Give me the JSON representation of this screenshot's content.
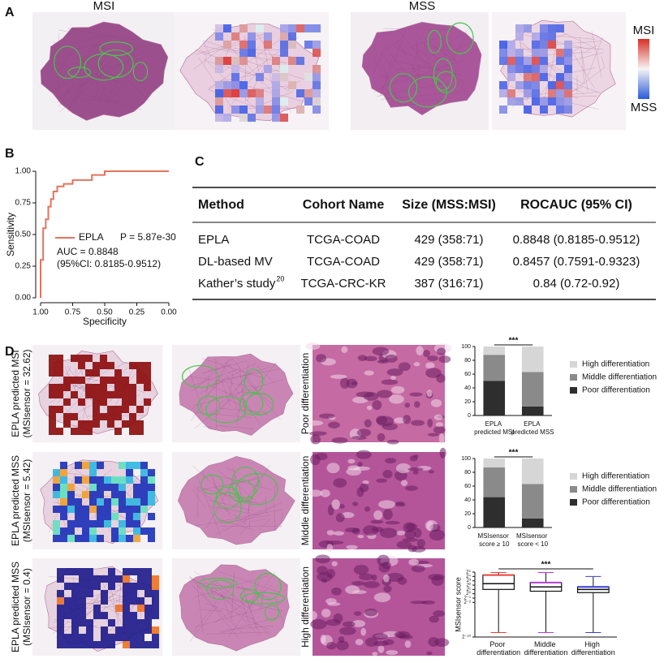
{
  "panel_a": {
    "label": "A",
    "titles": [
      "MSI",
      "MSS"
    ],
    "colorbar": {
      "top": "MSI",
      "bottom": "MSS"
    }
  },
  "panel_b": {
    "label": "B"
  },
  "panel_c": {
    "label": "C"
  },
  "panel_d": {
    "label": "D",
    "rows": [
      {
        "title": "EPLA predicted MSI",
        "subtitle": "(MSIsensor = 32.62)",
        "differentiation": "Poor differentiation"
      },
      {
        "title": "EPLA predicted MSS",
        "subtitle": "(MSIsensor = 5.42)",
        "differentiation": "Middle differentiation"
      },
      {
        "title": "EPLA predicted MSS",
        "subtitle": "(MSIsensor = 0.4)",
        "differentiation": "High differentiation"
      }
    ]
  },
  "table": {
    "columns": [
      "Method",
      "Cohort Name",
      "Size (MSS:MSI)",
      "ROCAUC (95% CI)"
    ],
    "rows": [
      [
        "EPLA",
        "TCGA-COAD",
        "429 (358:71)",
        "0.8848 (0.8185-0.9512)"
      ],
      [
        "DL-based MV",
        "TCGA-COAD",
        "429 (358:71)",
        "0.8457 (0.7591-0.9323)"
      ],
      [
        "Kather’s study",
        "TCGA-CRC-KR",
        "387 (316:71)",
        "0.84 (0.72-0.92)"
      ]
    ],
    "citation": "20"
  },
  "chart_data": [
    {
      "type": "line",
      "xlabel": "Specificity",
      "ylabel": "Sensitivity",
      "xlim": [
        1,
        0
      ],
      "ylim": [
        0,
        1
      ],
      "xticks": [
        {
          "value": 1,
          "label": "1.00"
        },
        {
          "value": 0.75,
          "label": "0.75"
        },
        {
          "value": 0.5,
          "label": "0.50"
        },
        {
          "value": 0.25,
          "label": "0.25"
        },
        {
          "value": 0,
          "label": "0.00"
        }
      ],
      "yticks": [
        {
          "value": 0,
          "label": "0.00"
        },
        {
          "value": 0.25,
          "label": "0.25"
        },
        {
          "value": 0.5,
          "label": "0.50"
        },
        {
          "value": 0.75,
          "label": "0.75"
        },
        {
          "value": 1,
          "label": "1.00"
        }
      ],
      "series": [
        {
          "name": "EPLA",
          "color": "#e5735f",
          "x": [
            1,
            1,
            0.98,
            0.98,
            0.96,
            0.96,
            0.94,
            0.94,
            0.92,
            0.92,
            0.9,
            0.9,
            0.87,
            0.87,
            0.82,
            0.82,
            0.75,
            0.75,
            0.6,
            0.6,
            0.5,
            0.5,
            0
          ],
          "values": [
            0,
            0.3,
            0.3,
            0.55,
            0.55,
            0.62,
            0.62,
            0.72,
            0.72,
            0.78,
            0.78,
            0.84,
            0.84,
            0.88,
            0.88,
            0.9,
            0.9,
            0.93,
            0.93,
            0.97,
            0.97,
            1,
            1
          ]
        }
      ],
      "annotations": [
        "P = 5.87e-30",
        "AUC = 0.8848",
        "(95%CI: 0.8185-0.9512)"
      ]
    },
    {
      "type": "bar",
      "stacked": true,
      "categories": [
        "EPLA predicted MSI",
        "EPLA predicted MSS"
      ],
      "ylim": [
        0,
        100
      ],
      "yticks": [
        0,
        20,
        40,
        60,
        80,
        100
      ],
      "significance": "***",
      "series": [
        {
          "name": "Poor differentiation",
          "color": "#2e2e2e",
          "values": [
            50,
            13
          ]
        },
        {
          "name": "Middle differentiation",
          "color": "#8a8a8a",
          "values": [
            38,
            50
          ]
        },
        {
          "name": "High differentiation",
          "color": "#d6d6d6",
          "values": [
            12,
            37
          ]
        }
      ]
    },
    {
      "type": "bar",
      "stacked": true,
      "categories": [
        "MSIsensor score ≥ 10",
        "MSIsensor score < 10"
      ],
      "ylim": [
        0,
        100
      ],
      "yticks": [
        0,
        20,
        40,
        60,
        80,
        100
      ],
      "significance": "***",
      "series": [
        {
          "name": "Poor differentiation",
          "color": "#2e2e2e",
          "values": [
            44,
            13
          ]
        },
        {
          "name": "Middle differentiation",
          "color": "#8a8a8a",
          "values": [
            43,
            50
          ]
        },
        {
          "name": "High differentiation",
          "color": "#d6d6d6",
          "values": [
            13,
            37
          ]
        }
      ]
    },
    {
      "type": "box",
      "ylabel": "MSIsensor score",
      "log_scale": true,
      "log_base": 2,
      "significance": "***",
      "categories": [
        "Poor differentiation",
        "Middle differentiation",
        "High differentiation"
      ],
      "ylim": [
        0.0009765625,
        32
      ],
      "yticks": [
        {
          "value": 0.0009765625,
          "label": "2⁻¹⁰"
        },
        {
          "value": 0.25,
          "label": "2⁻²"
        },
        {
          "value": 0.5,
          "label": "2⁻¹"
        },
        {
          "value": 1,
          "label": "2⁰"
        },
        {
          "value": 2,
          "label": "2¹"
        },
        {
          "value": 4,
          "label": "2²"
        },
        {
          "value": 8,
          "label": "2³"
        },
        {
          "value": 16,
          "label": "2⁴"
        },
        {
          "value": 32,
          "label": "2⁵"
        }
      ],
      "boxes": [
        {
          "min": 0.002,
          "q1": 2,
          "median": 5,
          "q3": 20,
          "max": 30,
          "color": "#e8413c"
        },
        {
          "min": 0.002,
          "q1": 1.5,
          "median": 3,
          "q3": 6,
          "max": 30,
          "color": "#b43fd6"
        },
        {
          "min": 0.002,
          "q1": 1.2,
          "median": 2,
          "q3": 3,
          "max": 16,
          "color": "#3b3fd6"
        }
      ]
    }
  ]
}
